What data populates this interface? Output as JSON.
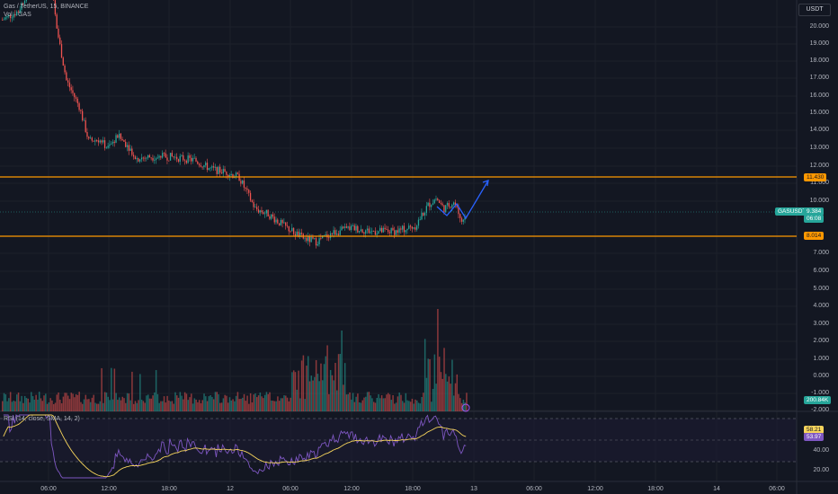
{
  "header": {
    "symbol_line": "Gas / TetherUS, 15, BINANCE",
    "vol_line": "Vol · GAS",
    "rsi_line": "RSI (14, close, SMA, 14, 2)"
  },
  "currency_button": "USDT",
  "price_axis_labels": [
    "20.000",
    "19.000",
    "18.000",
    "17.000",
    "16.000",
    "15.000",
    "14.000",
    "13.000",
    "12.000",
    "11.000",
    "10.000",
    "7.000",
    "6.000",
    "5.000",
    "4.000",
    "3.000",
    "2.000",
    "1.000",
    "0.000",
    "-1.000",
    "-2.000"
  ],
  "rsi_axis_labels": [
    "40.00",
    "20.00"
  ],
  "time_labels": [
    "06:00",
    "12:00",
    "18:00",
    "12",
    "06:00",
    "12:00",
    "18:00",
    "13",
    "06:00",
    "12:00",
    "18:00",
    "14",
    "06:00"
  ],
  "tags": {
    "resistance": "11.430",
    "symbol": "GASUSDT",
    "last_price": "9.384",
    "countdown": "06:08",
    "support": "8.014",
    "volume": "200.84K",
    "rsi_a": "58.21",
    "rsi_b": "53.97"
  },
  "lines": {
    "resistance": 11.43,
    "support": 8.014
  },
  "colors": {
    "up": "#26a69a",
    "down": "#ef5350",
    "level": "#ff9800",
    "arrow": "#2962ff",
    "rsi": "#7e57c2",
    "rsi_ma": "#f7d55c"
  }
}
